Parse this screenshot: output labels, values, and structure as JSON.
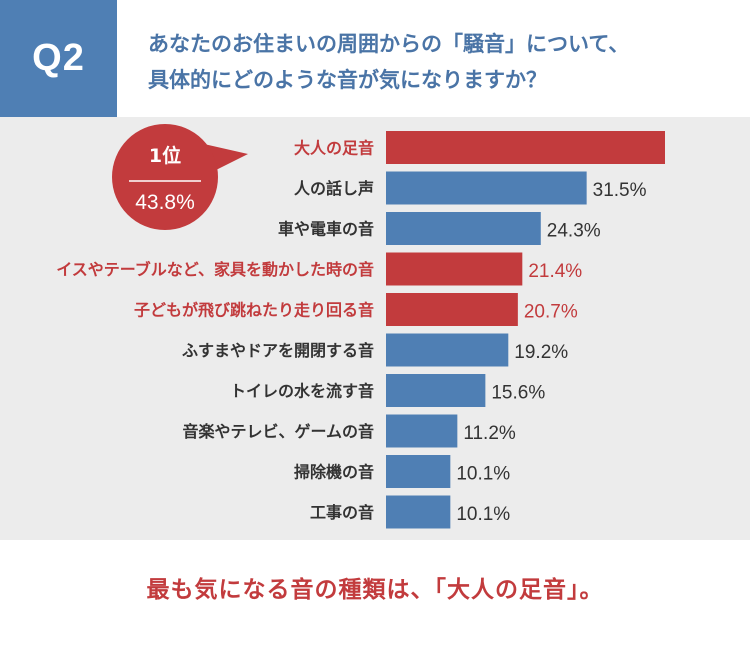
{
  "header": {
    "badge": "Q2",
    "question_lines": [
      "あなたのお住まいの周囲からの「騒音」について、",
      "具体的にどのような音が気になりますか？"
    ]
  },
  "callout": {
    "rank": "1位",
    "value_text": "43.8%"
  },
  "conclusion": "最も気になる音の種類は、「大人の足音」。",
  "colors": {
    "accent_blue": "#4f7fb4",
    "highlight_red": "#c23b3d",
    "panel_gray": "#ececec"
  },
  "chart_data": {
    "type": "bar",
    "orientation": "horizontal",
    "categories": [
      "大人の足音",
      "人の話し声",
      "車や電車の音",
      "イスやテーブルなど、家具を動かした時の音",
      "子どもが飛び跳ねたり走り回る音",
      "ふすまやドアを開閉する音",
      "トイレの水を流す音",
      "音楽やテレビ、ゲームの音",
      "掃除機の音",
      "工事の音"
    ],
    "values": [
      43.8,
      31.5,
      24.3,
      21.4,
      20.7,
      19.2,
      15.6,
      11.2,
      10.1,
      10.1
    ],
    "value_labels": [
      "",
      "31.5%",
      "24.3%",
      "21.4%",
      "20.7%",
      "19.2%",
      "15.6%",
      "11.2%",
      "10.1%",
      "10.1%"
    ],
    "highlighted": [
      true,
      false,
      false,
      true,
      true,
      false,
      false,
      false,
      false,
      false
    ],
    "unit": "%",
    "xlim": [
      0,
      43.8
    ]
  }
}
